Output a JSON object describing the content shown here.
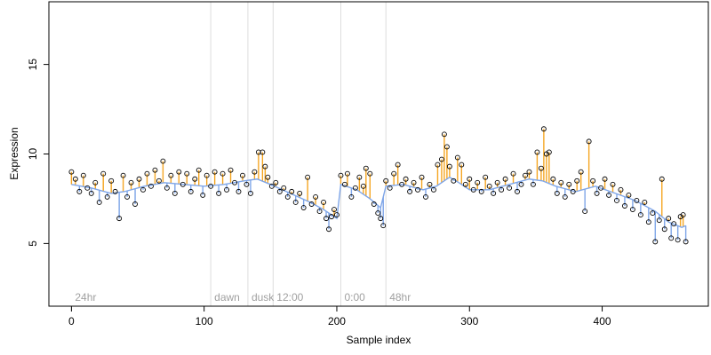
{
  "chart_data": {
    "type": "scatter",
    "title": "",
    "xlabel": "Sample index",
    "ylabel": "Expression",
    "xlim": [
      -17,
      480
    ],
    "ylim": [
      1.5,
      18.5
    ],
    "x_ticks": [
      "0",
      "100",
      "200",
      "300",
      "400"
    ],
    "y_ticks": [
      "5",
      "10",
      "15"
    ],
    "grid": false,
    "colors": {
      "above_trend": "#F5A623",
      "below_trend": "#7FA6E8",
      "trend_line": "#7FA6E8",
      "points_edge": "#000000",
      "divider": "#DDDDDD",
      "segment_label": "#A0A0A0"
    },
    "segments": [
      {
        "label": "24hr",
        "x": 0
      },
      {
        "label": "dawn",
        "x": 105
      },
      {
        "label": "dusk",
        "x": 133
      },
      {
        "label": "12:00",
        "x": 152
      },
      {
        "label": "0:00",
        "x": 203
      },
      {
        "label": "48hr",
        "x": 237
      }
    ],
    "trend": [
      [
        0,
        8.3
      ],
      [
        15,
        8.1
      ],
      [
        30,
        7.8
      ],
      [
        40,
        7.9
      ],
      [
        55,
        8.2
      ],
      [
        70,
        8.4
      ],
      [
        85,
        8.3
      ],
      [
        100,
        8.2
      ],
      [
        115,
        8.3
      ],
      [
        130,
        8.5
      ],
      [
        140,
        8.6
      ],
      [
        150,
        8.3
      ],
      [
        165,
        7.8
      ],
      [
        180,
        7.3
      ],
      [
        190,
        6.9
      ],
      [
        200,
        6.4
      ],
      [
        203,
        8.3
      ],
      [
        215,
        8.0
      ],
      [
        225,
        7.5
      ],
      [
        233,
        7.0
      ],
      [
        237,
        8.2
      ],
      [
        250,
        8.3
      ],
      [
        265,
        8.0
      ],
      [
        275,
        8.2
      ],
      [
        285,
        8.7
      ],
      [
        292,
        8.4
      ],
      [
        300,
        8.0
      ],
      [
        315,
        8.0
      ],
      [
        330,
        8.3
      ],
      [
        345,
        8.6
      ],
      [
        355,
        8.5
      ],
      [
        365,
        8.2
      ],
      [
        380,
        7.9
      ],
      [
        395,
        8.2
      ],
      [
        410,
        7.8
      ],
      [
        425,
        7.4
      ],
      [
        440,
        6.8
      ],
      [
        450,
        6.2
      ],
      [
        460,
        5.9
      ],
      [
        463,
        6.0
      ]
    ],
    "series": [
      {
        "name": "",
        "values": [
          [
            0,
            9.0
          ],
          [
            3,
            8.6
          ],
          [
            6,
            7.9
          ],
          [
            9,
            8.8
          ],
          [
            12,
            8.1
          ],
          [
            15,
            7.8
          ],
          [
            18,
            8.4
          ],
          [
            21,
            7.3
          ],
          [
            24,
            8.9
          ],
          [
            27,
            7.6
          ],
          [
            30,
            8.5
          ],
          [
            33,
            7.9
          ],
          [
            36,
            6.4
          ],
          [
            39,
            8.8
          ],
          [
            42,
            7.6
          ],
          [
            45,
            8.4
          ],
          [
            48,
            7.2
          ],
          [
            51,
            8.6
          ],
          [
            54,
            8.0
          ],
          [
            57,
            8.9
          ],
          [
            60,
            8.2
          ],
          [
            63,
            9.1
          ],
          [
            66,
            8.5
          ],
          [
            69,
            9.6
          ],
          [
            72,
            8.1
          ],
          [
            75,
            8.8
          ],
          [
            78,
            7.8
          ],
          [
            81,
            9.0
          ],
          [
            84,
            8.3
          ],
          [
            87,
            8.9
          ],
          [
            90,
            7.9
          ],
          [
            93,
            8.6
          ],
          [
            96,
            9.1
          ],
          [
            99,
            7.7
          ],
          [
            102,
            8.8
          ],
          [
            105,
            8.2
          ],
          [
            108,
            9.0
          ],
          [
            111,
            7.8
          ],
          [
            114,
            8.9
          ],
          [
            117,
            8.0
          ],
          [
            120,
            9.1
          ],
          [
            123,
            8.4
          ],
          [
            126,
            7.9
          ],
          [
            129,
            8.8
          ],
          [
            132,
            8.3
          ],
          [
            135,
            7.8
          ],
          [
            138,
            9.0
          ],
          [
            141,
            10.1
          ],
          [
            144,
            10.1
          ],
          [
            146,
            9.3
          ],
          [
            148,
            8.7
          ],
          [
            151,
            8.2
          ],
          [
            154,
            8.4
          ],
          [
            157,
            7.9
          ],
          [
            160,
            8.1
          ],
          [
            163,
            7.6
          ],
          [
            166,
            7.9
          ],
          [
            169,
            7.3
          ],
          [
            172,
            7.8
          ],
          [
            175,
            7.0
          ],
          [
            178,
            8.7
          ],
          [
            181,
            7.2
          ],
          [
            184,
            7.6
          ],
          [
            187,
            6.8
          ],
          [
            190,
            7.3
          ],
          [
            192,
            6.4
          ],
          [
            194,
            5.8
          ],
          [
            196,
            6.5
          ],
          [
            198,
            6.9
          ],
          [
            200,
            6.6
          ],
          [
            203,
            8.8
          ],
          [
            206,
            8.3
          ],
          [
            208,
            8.9
          ],
          [
            211,
            7.6
          ],
          [
            214,
            8.1
          ],
          [
            217,
            8.7
          ],
          [
            220,
            8.2
          ],
          [
            222,
            9.2
          ],
          [
            225,
            8.9
          ],
          [
            228,
            7.2
          ],
          [
            231,
            6.7
          ],
          [
            233,
            6.4
          ],
          [
            235,
            6.0
          ],
          [
            237,
            8.5
          ],
          [
            240,
            8.1
          ],
          [
            243,
            8.9
          ],
          [
            246,
            9.4
          ],
          [
            249,
            8.3
          ],
          [
            252,
            8.6
          ],
          [
            255,
            7.9
          ],
          [
            258,
            8.4
          ],
          [
            261,
            8.0
          ],
          [
            264,
            8.7
          ],
          [
            267,
            7.6
          ],
          [
            270,
            8.3
          ],
          [
            273,
            8.0
          ],
          [
            276,
            9.4
          ],
          [
            279,
            9.7
          ],
          [
            281,
            11.1
          ],
          [
            283,
            10.4
          ],
          [
            285,
            9.3
          ],
          [
            288,
            8.5
          ],
          [
            291,
            9.8
          ],
          [
            294,
            9.4
          ],
          [
            297,
            8.3
          ],
          [
            300,
            8.6
          ],
          [
            303,
            8.0
          ],
          [
            306,
            8.4
          ],
          [
            309,
            7.9
          ],
          [
            312,
            8.7
          ],
          [
            315,
            8.2
          ],
          [
            318,
            7.8
          ],
          [
            321,
            8.4
          ],
          [
            324,
            8.0
          ],
          [
            327,
            8.6
          ],
          [
            330,
            8.1
          ],
          [
            333,
            8.9
          ],
          [
            336,
            7.9
          ],
          [
            339,
            8.3
          ],
          [
            342,
            8.8
          ],
          [
            345,
            9.0
          ],
          [
            348,
            8.3
          ],
          [
            351,
            10.1
          ],
          [
            354,
            9.2
          ],
          [
            356,
            11.4
          ],
          [
            358,
            10.0
          ],
          [
            360,
            10.1
          ],
          [
            363,
            8.6
          ],
          [
            366,
            7.8
          ],
          [
            369,
            8.4
          ],
          [
            372,
            7.6
          ],
          [
            375,
            8.3
          ],
          [
            378,
            7.9
          ],
          [
            381,
            8.5
          ],
          [
            384,
            9.0
          ],
          [
            387,
            6.8
          ],
          [
            390,
            10.7
          ],
          [
            393,
            8.5
          ],
          [
            396,
            7.8
          ],
          [
            399,
            8.1
          ],
          [
            402,
            8.6
          ],
          [
            405,
            7.7
          ],
          [
            408,
            8.3
          ],
          [
            411,
            7.4
          ],
          [
            414,
            8.0
          ],
          [
            417,
            7.1
          ],
          [
            420,
            7.7
          ],
          [
            423,
            6.9
          ],
          [
            426,
            7.4
          ],
          [
            429,
            6.6
          ],
          [
            432,
            7.3
          ],
          [
            435,
            6.2
          ],
          [
            438,
            6.7
          ],
          [
            440,
            5.1
          ],
          [
            443,
            6.3
          ],
          [
            445,
            8.6
          ],
          [
            447,
            5.8
          ],
          [
            450,
            6.4
          ],
          [
            452,
            5.3
          ],
          [
            454,
            6.1
          ],
          [
            457,
            5.2
          ],
          [
            459,
            6.5
          ],
          [
            461,
            6.6
          ],
          [
            463,
            5.1
          ]
        ]
      }
    ]
  }
}
